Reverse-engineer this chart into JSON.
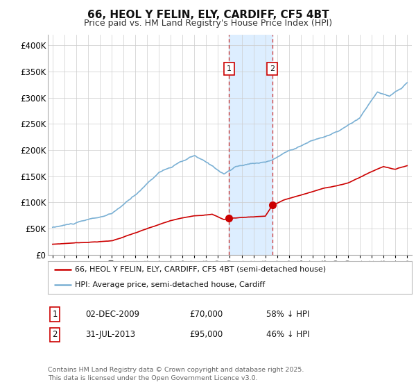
{
  "title_line1": "66, HEOL Y FELIN, ELY, CARDIFF, CF5 4BT",
  "title_line2": "Price paid vs. HM Land Registry's House Price Index (HPI)",
  "legend_red": "66, HEOL Y FELIN, ELY, CARDIFF, CF5 4BT (semi-detached house)",
  "legend_blue": "HPI: Average price, semi-detached house, Cardiff",
  "transaction1_date": "02-DEC-2009",
  "transaction1_price": 70000,
  "transaction1_hpi": "58% ↓ HPI",
  "transaction2_date": "31-JUL-2013",
  "transaction2_price": 95000,
  "transaction2_hpi": "46% ↓ HPI",
  "footnote_line1": "Contains HM Land Registry data © Crown copyright and database right 2025.",
  "footnote_line2": "This data is licensed under the Open Government Licence v3.0.",
  "bg_color": "#ffffff",
  "plot_bg_color": "#ffffff",
  "red_color": "#cc0000",
  "blue_color": "#7ab0d4",
  "highlight_color": "#ddeeff",
  "dashed_color": "#cc3333",
  "ylim": [
    0,
    420000
  ],
  "yticks": [
    0,
    50000,
    100000,
    150000,
    200000,
    250000,
    300000,
    350000,
    400000
  ],
  "transaction1_x": 2009.92,
  "transaction2_x": 2013.58,
  "xmin": 1994.6,
  "xmax": 2025.4
}
